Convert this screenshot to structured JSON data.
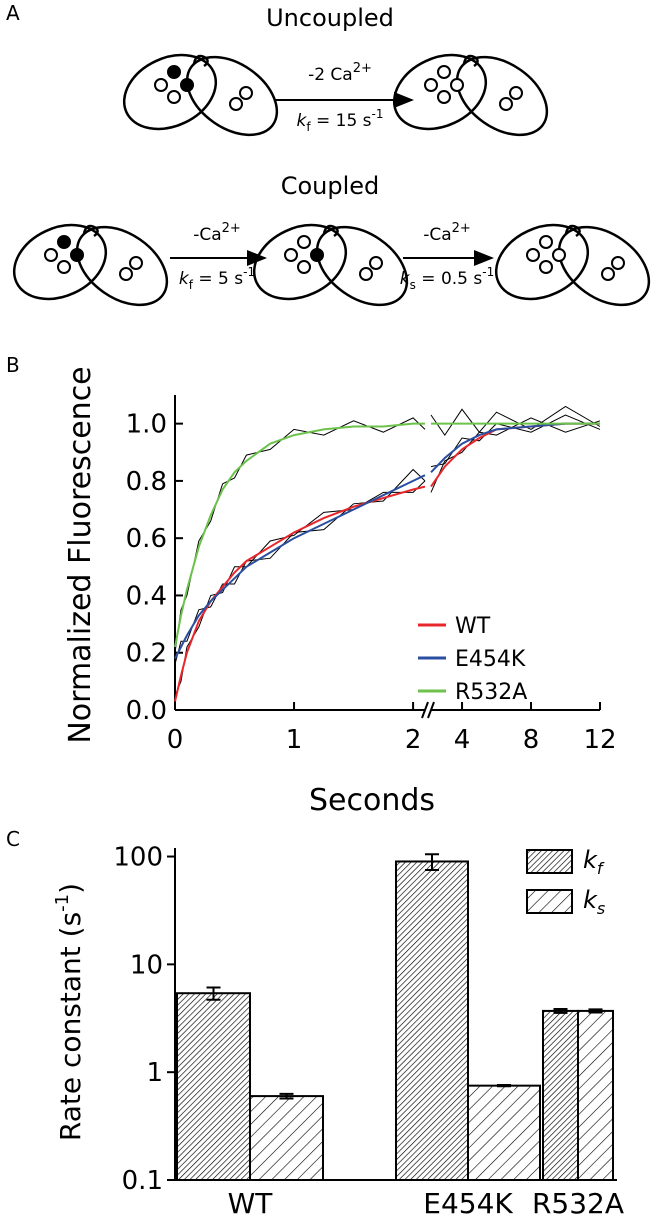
{
  "panel_labels": [
    "A",
    "B",
    "C"
  ],
  "scheme": {
    "uncoupled": {
      "title": "Uncoupled",
      "arrow_top": [
        "-2 Ca",
        "2+"
      ],
      "arrow_bottom": [
        "k",
        "f",
        " = 15 s",
        "-1"
      ]
    },
    "coupled": {
      "title": "Coupled",
      "steps": [
        {
          "arrow_top": [
            "-Ca",
            "2+"
          ],
          "arrow_bottom": [
            "k",
            "f",
            " = 5 s",
            "-1"
          ]
        },
        {
          "arrow_top": [
            "-Ca",
            "2+"
          ],
          "arrow_bottom": [
            "k",
            "s",
            " = 0.5 s",
            "-1"
          ]
        }
      ]
    }
  },
  "chart_data": [
    {
      "type": "line",
      "ylabel": "Normalized Fluorescence",
      "xlabel": "Seconds",
      "ylim": [
        0,
        1.1
      ],
      "yticks": [
        {
          "value": 0,
          "label": "0.0"
        },
        0.2,
        0.4,
        0.6,
        0.8,
        {
          "value": 1,
          "label": "1.0"
        }
      ],
      "x_segments": [
        {
          "xlim": [
            0,
            2.1
          ],
          "xticks": [
            0,
            1,
            2
          ]
        },
        {
          "xlim": [
            2.2,
            12
          ],
          "xticks": [
            4,
            8,
            12
          ]
        }
      ],
      "x": [
        0,
        0.05,
        0.1,
        0.2,
        0.3,
        0.4,
        0.5,
        0.6,
        0.8,
        1,
        1.25,
        1.5,
        1.75,
        2,
        2.1,
        2.2,
        3,
        4,
        5,
        6,
        8,
        10,
        12
      ],
      "traces": [
        {
          "color": "#000000",
          "values": [
            0.05,
            0.1,
            0.22,
            0.29,
            0.4,
            0.41,
            0.5,
            0.5,
            0.59,
            0.61,
            0.69,
            0.7,
            0.76,
            0.76,
            0.8,
            0.76,
            0.87,
            0.9,
            0.97,
            0.96,
            1.02,
            0.97,
            1.01
          ]
        },
        {
          "color": "#000000",
          "values": [
            0.16,
            0.24,
            0.24,
            0.35,
            0.36,
            0.44,
            0.44,
            0.52,
            0.53,
            0.62,
            0.63,
            0.72,
            0.73,
            0.84,
            0.8,
            0.85,
            0.86,
            0.95,
            0.94,
            1.0,
            0.97,
            1.03,
            0.98
          ]
        },
        {
          "color": "#000000",
          "values": [
            0.2,
            0.35,
            0.4,
            0.59,
            0.66,
            0.79,
            0.81,
            0.89,
            0.91,
            0.98,
            0.96,
            1.01,
            0.97,
            1.02,
            0.98,
            1.03,
            0.96,
            1.05,
            0.97,
            1.04,
            0.98,
            1.06,
            0.99
          ]
        }
      ],
      "series": [
        {
          "name": "WT",
          "color": "#e8262b",
          "values": [
            0.03,
            0.12,
            0.2,
            0.31,
            0.38,
            0.43,
            0.48,
            0.52,
            0.57,
            0.62,
            0.67,
            0.71,
            0.74,
            0.77,
            0.78,
            0.78,
            0.85,
            0.91,
            0.95,
            0.98,
            0.99,
            1.0,
            1.0
          ]
        },
        {
          "name": "E454K",
          "color": "#2b4fa0",
          "values": [
            0.18,
            0.22,
            0.26,
            0.33,
            0.38,
            0.42,
            0.46,
            0.5,
            0.55,
            0.6,
            0.65,
            0.7,
            0.75,
            0.8,
            0.82,
            0.83,
            0.88,
            0.93,
            0.96,
            0.98,
            0.99,
            1.0,
            1.0
          ]
        },
        {
          "name": "R532A",
          "color": "#6cc24a",
          "values": [
            0.22,
            0.33,
            0.42,
            0.57,
            0.68,
            0.77,
            0.83,
            0.87,
            0.93,
            0.96,
            0.98,
            0.99,
            0.99,
            1.0,
            1.0,
            1.0,
            1.0,
            1.0,
            1.0,
            1.0,
            1.0,
            1.0,
            1.0
          ]
        }
      ],
      "legend": "right"
    },
    {
      "type": "bar",
      "log_y": true,
      "ylabel": [
        "Rate constant (s",
        "-1",
        ")"
      ],
      "ylim": [
        0.1,
        120
      ],
      "yticks": [
        0.1,
        1,
        10,
        100
      ],
      "categories": [
        "WT",
        "E454K",
        "R532A"
      ],
      "series": [
        {
          "name": "k",
          "subscript": "f",
          "hatch": "dense",
          "values": [
            5.4,
            90,
            3.7
          ],
          "errors": [
            0.7,
            15,
            0.15
          ]
        },
        {
          "name": "k",
          "subscript": "s",
          "hatch": "sparse",
          "values": [
            0.6,
            0.75,
            3.7
          ],
          "errors": [
            0.03,
            0.01,
            0.12
          ]
        }
      ],
      "legend": "upper right"
    }
  ]
}
